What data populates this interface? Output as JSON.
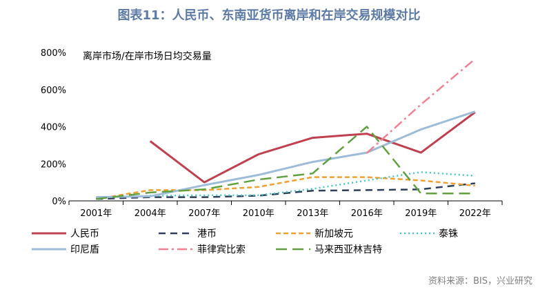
{
  "title": "图表11：人民币、东南亚货币离岸和在岸交易规模对比",
  "source": "资料来源：BIS，兴业研究",
  "chart_data": {
    "type": "line",
    "title": "",
    "ylabel": "离岸市场/在岸市场日均交易量",
    "xlabel": "",
    "categories": [
      "2001年",
      "2004年",
      "2007年",
      "2010年",
      "2013年",
      "2016年",
      "2019年",
      "2022年"
    ],
    "ylim": [
      0,
      800
    ],
    "yticks": [
      0,
      200,
      400,
      600,
      800
    ],
    "ytick_labels": [
      "0%",
      "200%",
      "400%",
      "600%",
      "800%"
    ],
    "grid": false,
    "legend_position": "bottom",
    "series": [
      {
        "name": "人民币",
        "color": "#c0404f",
        "dash": "",
        "width": 3,
        "values": [
          null,
          322,
          100,
          251,
          340,
          362,
          260,
          478
        ]
      },
      {
        "name": "港币",
        "color": "#2d3f5a",
        "dash": "10,7",
        "width": 2.5,
        "values": [
          10,
          20,
          20,
          28,
          55,
          58,
          62,
          95
        ]
      },
      {
        "name": "新加坡元",
        "color": "#f0a030",
        "dash": "7,4",
        "width": 2.5,
        "values": [
          10,
          58,
          58,
          75,
          128,
          128,
          110,
          82
        ]
      },
      {
        "name": "泰铢",
        "color": "#40c8c8",
        "dash": "2,4",
        "width": 2.5,
        "values": [
          18,
          28,
          30,
          30,
          65,
          110,
          155,
          135
        ]
      },
      {
        "name": "印尼盾",
        "color": "#9dbcd8",
        "dash": "",
        "width": 3,
        "values": [
          20,
          25,
          85,
          140,
          210,
          260,
          385,
          482
        ]
      },
      {
        "name": "菲律宾比索",
        "color": "#f08090",
        "dash": "14,5,3,5",
        "width": 2.5,
        "values": [
          null,
          null,
          null,
          null,
          null,
          258,
          520,
          765
        ]
      },
      {
        "name": "马来西亚林吉特",
        "color": "#60a040",
        "dash": "16,8",
        "width": 2.5,
        "values": [
          10,
          45,
          62,
          115,
          148,
          400,
          40,
          40
        ]
      }
    ]
  }
}
